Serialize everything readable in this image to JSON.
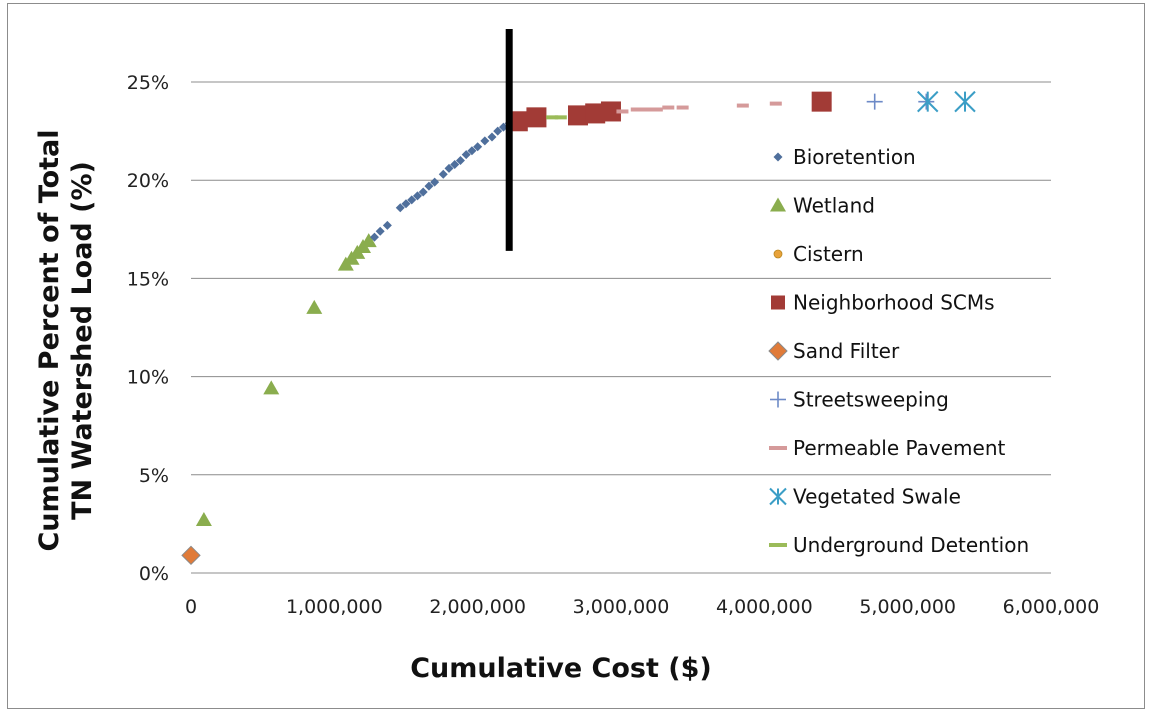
{
  "chart_data": {
    "type": "scatter",
    "title": "",
    "xlabel": "Cumulative Cost ($)",
    "ylabel_lines": [
      "Cumulative Percent of Total",
      "TN Watershed Load (%)"
    ],
    "xlim": [
      0,
      6000000
    ],
    "ylim": [
      0,
      0.25
    ],
    "x_ticks": [
      0,
      1000000,
      2000000,
      3000000,
      4000000,
      5000000,
      6000000
    ],
    "x_tick_labels": [
      "0",
      "1,000,000",
      "2,000,000",
      "3,000,000",
      "4,000,000",
      "5,000,000",
      "6,000,000"
    ],
    "y_ticks": [
      0,
      0.05,
      0.1,
      0.15,
      0.2,
      0.25
    ],
    "y_tick_labels": [
      "0%",
      "5%",
      "10%",
      "15%",
      "20%",
      "25%"
    ],
    "grid": "horizontal",
    "legend_position": "right",
    "vertical_line_x": 2220000,
    "vertical_line_y_range": [
      0.164,
      0.277
    ],
    "series": [
      {
        "name": "Sand Filter",
        "marker": "diamond-large",
        "color": "#e07b39",
        "points": [
          [
            0,
            0.009
          ]
        ]
      },
      {
        "name": "Wetland",
        "marker": "triangle",
        "color": "#8aad4e",
        "points": [
          [
            90000,
            0.027
          ],
          [
            560000,
            0.094
          ],
          [
            860000,
            0.135
          ],
          [
            1080000,
            0.157
          ],
          [
            1120000,
            0.16
          ],
          [
            1160000,
            0.163
          ],
          [
            1200000,
            0.166
          ],
          [
            1240000,
            0.169
          ]
        ]
      },
      {
        "name": "Bioretention",
        "marker": "diamond",
        "color": "#4f6f9c",
        "points": [
          [
            1280000,
            0.171
          ],
          [
            1320000,
            0.174
          ],
          [
            1370000,
            0.177
          ],
          [
            1460000,
            0.186
          ],
          [
            1500000,
            0.188
          ],
          [
            1540000,
            0.19
          ],
          [
            1580000,
            0.192
          ],
          [
            1620000,
            0.194
          ],
          [
            1660000,
            0.197
          ],
          [
            1700000,
            0.199
          ],
          [
            1760000,
            0.203
          ],
          [
            1800000,
            0.206
          ],
          [
            1840000,
            0.208
          ],
          [
            1880000,
            0.21
          ],
          [
            1920000,
            0.213
          ],
          [
            1960000,
            0.215
          ],
          [
            2000000,
            0.217
          ],
          [
            2050000,
            0.22
          ],
          [
            2100000,
            0.222
          ],
          [
            2140000,
            0.225
          ],
          [
            2180000,
            0.227
          ],
          [
            2220000,
            0.229
          ]
        ]
      },
      {
        "name": "Cistern",
        "marker": "circle",
        "color": "#e8a23a",
        "points": []
      },
      {
        "name": "Neighborhood SCMs",
        "marker": "square",
        "color": "#a23b36",
        "points": [
          [
            2280000,
            0.23
          ],
          [
            2410000,
            0.232
          ],
          [
            2700000,
            0.233
          ],
          [
            2820000,
            0.234
          ],
          [
            2930000,
            0.235
          ],
          [
            4400000,
            0.24
          ]
        ]
      },
      {
        "name": "Streetsweeping",
        "marker": "plus",
        "color": "#6d8ac7",
        "points": [
          [
            4770000,
            0.24
          ],
          [
            5130000,
            0.24
          ]
        ]
      },
      {
        "name": "Permeable Pavement",
        "marker": "dash",
        "color": "#d59a9a",
        "points": [
          [
            3010000,
            0.235
          ],
          [
            3110000,
            0.236
          ],
          [
            3190000,
            0.236
          ],
          [
            3250000,
            0.236
          ],
          [
            3330000,
            0.237
          ],
          [
            3430000,
            0.237
          ],
          [
            3850000,
            0.238
          ],
          [
            4080000,
            0.239
          ]
        ]
      },
      {
        "name": "Vegetated Swale",
        "marker": "asterisk",
        "color": "#3b9ec6",
        "points": [
          [
            5140000,
            0.24
          ],
          [
            5400000,
            0.24
          ]
        ]
      },
      {
        "name": "Underground Detention",
        "marker": "dash",
        "color": "#9bbb59",
        "points": [
          [
            2520000,
            0.232
          ],
          [
            2580000,
            0.232
          ]
        ]
      }
    ]
  }
}
